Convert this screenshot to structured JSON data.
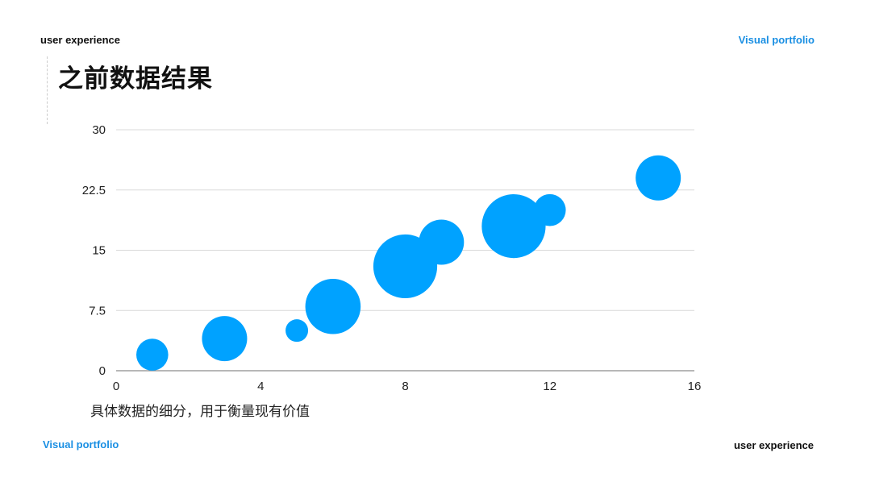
{
  "header": {
    "left_label": "user experience",
    "right_label": "Visual portfolio"
  },
  "footer": {
    "left_label": "Visual portfolio",
    "right_label": "user experience"
  },
  "page_title": "之前数据结果",
  "caption": "具体数据的细分，用于衡量现有价值",
  "colors": {
    "bubble": "#00a2ff",
    "accent": "#1a8fe3",
    "grid": "#d9d9d9",
    "axis": "#8c8c8c"
  },
  "chart_data": {
    "type": "scatter",
    "variant": "bubble",
    "title": "",
    "xlabel": "",
    "ylabel": "",
    "xlim": [
      0,
      16
    ],
    "ylim": [
      0,
      30
    ],
    "x_ticks": [
      "0",
      "4",
      "8",
      "12",
      "16"
    ],
    "y_ticks": [
      "0",
      "7.5",
      "15",
      "22.5",
      "30"
    ],
    "grid": "horizontal",
    "legend": "none",
    "series": [
      {
        "points": [
          {
            "x": 1,
            "y": 2,
            "size": 2
          },
          {
            "x": 3,
            "y": 4,
            "size": 4
          },
          {
            "x": 5,
            "y": 5,
            "size": 1
          },
          {
            "x": 6,
            "y": 8,
            "size": 6
          },
          {
            "x": 8,
            "y": 13,
            "size": 8
          },
          {
            "x": 9,
            "y": 16,
            "size": 4
          },
          {
            "x": 11,
            "y": 18,
            "size": 8
          },
          {
            "x": 12,
            "y": 20,
            "size": 2
          },
          {
            "x": 15,
            "y": 24,
            "size": 4
          }
        ]
      }
    ]
  }
}
